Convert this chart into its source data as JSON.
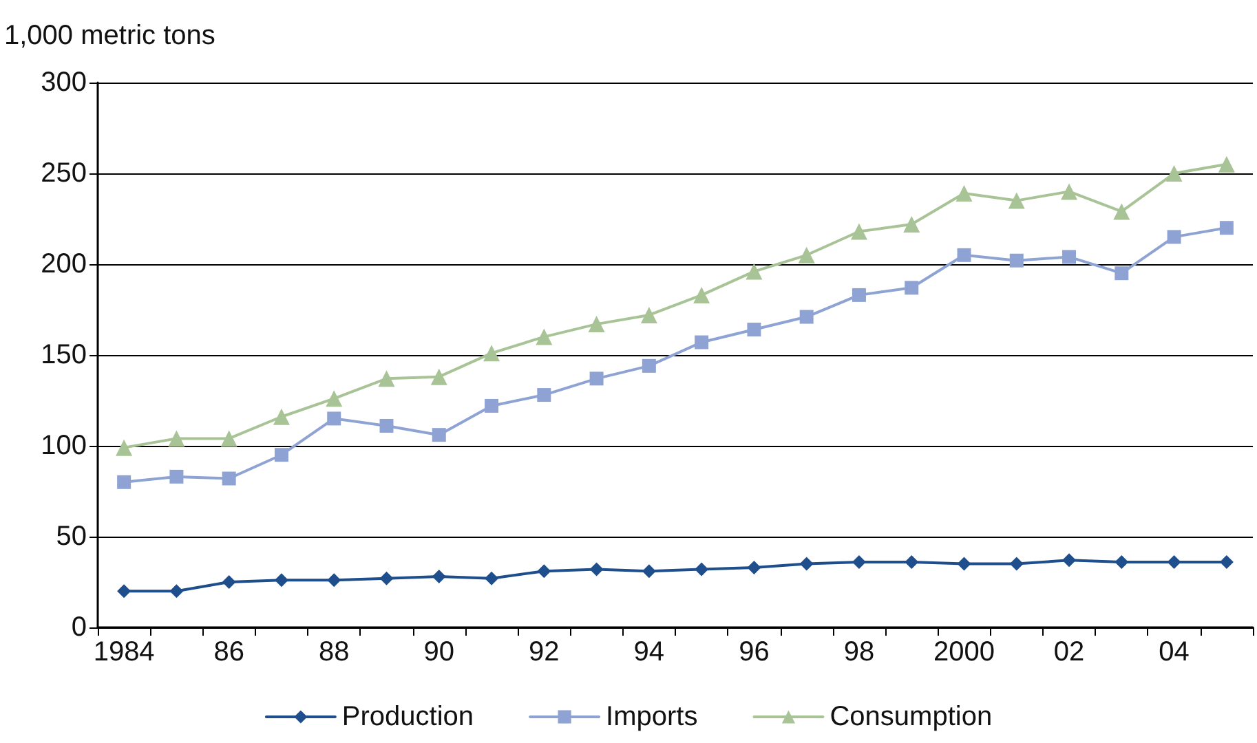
{
  "chart_data": {
    "type": "line",
    "ylabel": "1,000 metric tons",
    "categories": [
      "1984",
      null,
      "86",
      null,
      "88",
      null,
      "90",
      null,
      "92",
      null,
      "94",
      null,
      "96",
      null,
      "98",
      null,
      "2000",
      null,
      "02",
      null,
      "04",
      null
    ],
    "series": [
      {
        "name": "Production",
        "color": "#1f4e8c",
        "marker": "diamond",
        "values": [
          20,
          20,
          25,
          26,
          26,
          27,
          28,
          27,
          31,
          32,
          31,
          32,
          33,
          35,
          36,
          36,
          35,
          35,
          37,
          36,
          36,
          36
        ]
      },
      {
        "name": "Imports",
        "color": "#8ea3d4",
        "marker": "square",
        "values": [
          80,
          83,
          82,
          95,
          115,
          111,
          106,
          122,
          128,
          137,
          144,
          157,
          164,
          171,
          183,
          187,
          205,
          202,
          204,
          195,
          215,
          220
        ]
      },
      {
        "name": "Consumption",
        "color": "#a8c496",
        "marker": "triangle",
        "values": [
          99,
          104,
          104,
          116,
          126,
          137,
          138,
          151,
          160,
          167,
          172,
          183,
          196,
          205,
          218,
          222,
          239,
          235,
          240,
          229,
          250,
          255
        ]
      }
    ],
    "ylim": [
      0,
      300
    ],
    "yticks": [
      0,
      50,
      100,
      150,
      200,
      250,
      300
    ],
    "grid": "y",
    "legend": "bottom",
    "line_style": "solid"
  }
}
